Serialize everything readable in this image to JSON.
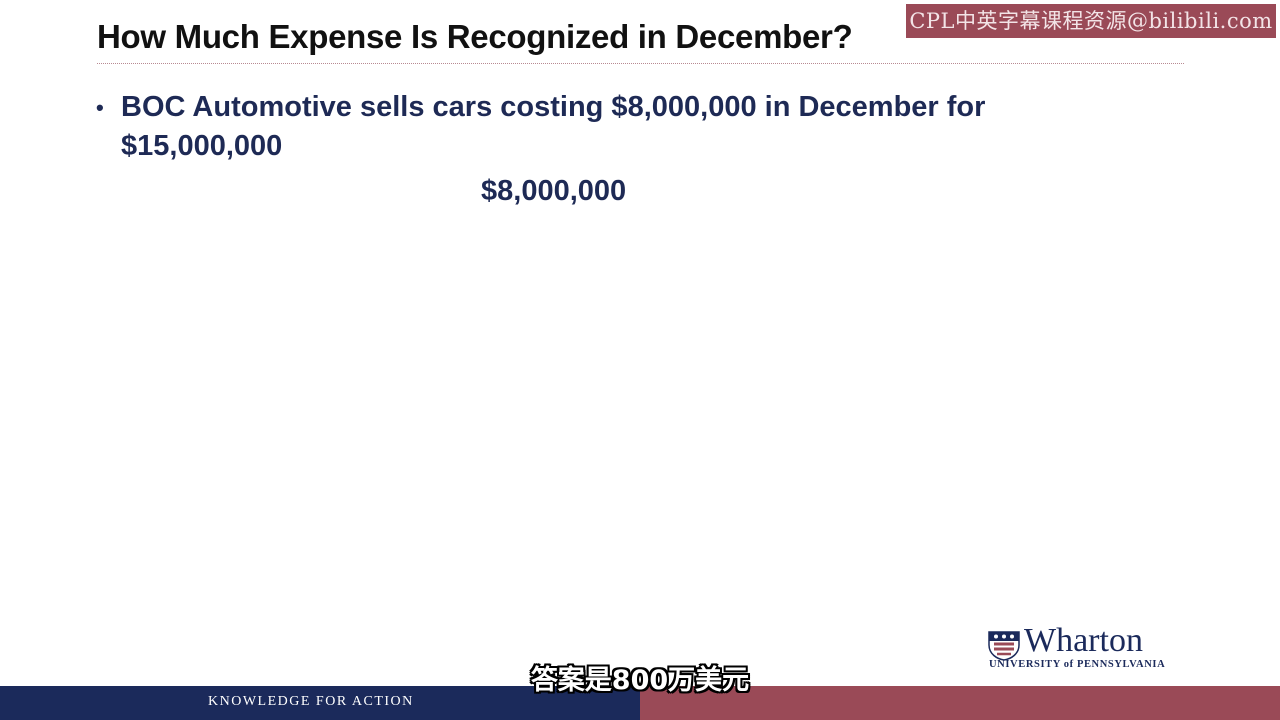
{
  "watermark": "CPL中英字幕课程资源@bilibili.com",
  "slide": {
    "title": "How Much Expense Is Recognized in December?",
    "bullets": [
      "BOC Automotive sells cars costing $8,000,000 in December for $15,000,000"
    ],
    "answer": "$8,000,000"
  },
  "logo": {
    "name": "Wharton",
    "university": "UNIVERSITY of PENNSYLVANIA",
    "icon": "penn-shield-icon"
  },
  "footer": {
    "motto": "KNOWLEDGE FOR ACTION"
  },
  "subtitle": "答案是800万美元",
  "colors": {
    "navy": "#1b2a5b",
    "burgundy": "#9a4a57",
    "body_text": "#1e2a55"
  }
}
